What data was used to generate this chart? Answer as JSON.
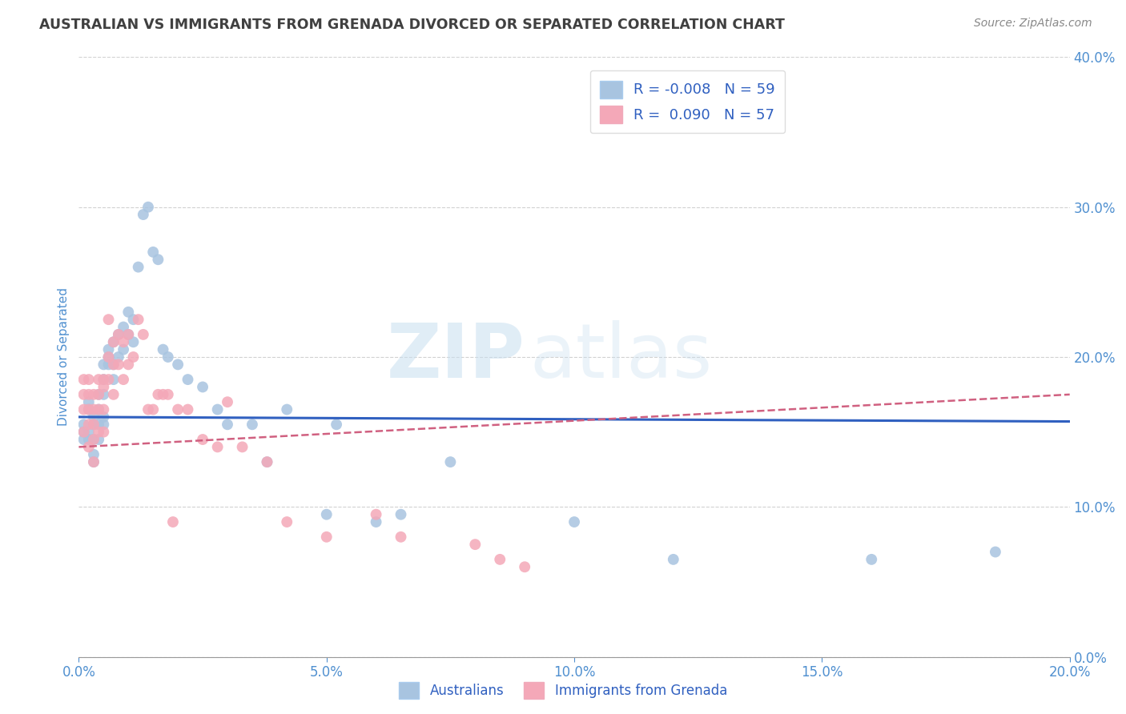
{
  "title": "AUSTRALIAN VS IMMIGRANTS FROM GRENADA DIVORCED OR SEPARATED CORRELATION CHART",
  "source": "Source: ZipAtlas.com",
  "ylabel": "Divorced or Separated",
  "legend_label1": "Australians",
  "legend_label2": "Immigrants from Grenada",
  "R1": "-0.008",
  "N1": "59",
  "R2": "0.090",
  "N2": "57",
  "xlim": [
    0.0,
    0.2
  ],
  "ylim": [
    0.0,
    0.4
  ],
  "xticks": [
    0.0,
    0.05,
    0.1,
    0.15,
    0.2
  ],
  "yticks": [
    0.0,
    0.1,
    0.2,
    0.3,
    0.4
  ],
  "color1": "#a8c4e0",
  "color2": "#f4a8b8",
  "line1_color": "#3060c0",
  "line2_color": "#d06080",
  "watermark_zip": "ZIP",
  "watermark_atlas": "atlas",
  "background_color": "#ffffff",
  "grid_color": "#cccccc",
  "title_color": "#404040",
  "ax_label_color": "#5090d0",
  "australians_x": [
    0.001,
    0.001,
    0.001,
    0.002,
    0.002,
    0.002,
    0.002,
    0.003,
    0.003,
    0.003,
    0.003,
    0.003,
    0.004,
    0.004,
    0.004,
    0.004,
    0.005,
    0.005,
    0.005,
    0.005,
    0.005,
    0.006,
    0.006,
    0.006,
    0.007,
    0.007,
    0.007,
    0.008,
    0.008,
    0.009,
    0.009,
    0.01,
    0.01,
    0.011,
    0.011,
    0.012,
    0.013,
    0.014,
    0.015,
    0.016,
    0.017,
    0.018,
    0.02,
    0.022,
    0.025,
    0.028,
    0.03,
    0.035,
    0.038,
    0.042,
    0.05,
    0.052,
    0.06,
    0.065,
    0.075,
    0.1,
    0.12,
    0.16,
    0.185
  ],
  "australians_y": [
    0.155,
    0.15,
    0.145,
    0.17,
    0.165,
    0.15,
    0.145,
    0.16,
    0.155,
    0.145,
    0.135,
    0.13,
    0.175,
    0.165,
    0.155,
    0.145,
    0.195,
    0.185,
    0.175,
    0.16,
    0.155,
    0.205,
    0.2,
    0.195,
    0.21,
    0.195,
    0.185,
    0.215,
    0.2,
    0.22,
    0.205,
    0.23,
    0.215,
    0.225,
    0.21,
    0.26,
    0.295,
    0.3,
    0.27,
    0.265,
    0.205,
    0.2,
    0.195,
    0.185,
    0.18,
    0.165,
    0.155,
    0.155,
    0.13,
    0.165,
    0.095,
    0.155,
    0.09,
    0.095,
    0.13,
    0.09,
    0.065,
    0.065,
    0.07
  ],
  "grenada_x": [
    0.001,
    0.001,
    0.001,
    0.001,
    0.002,
    0.002,
    0.002,
    0.002,
    0.002,
    0.003,
    0.003,
    0.003,
    0.003,
    0.003,
    0.004,
    0.004,
    0.004,
    0.004,
    0.005,
    0.005,
    0.005,
    0.005,
    0.006,
    0.006,
    0.006,
    0.007,
    0.007,
    0.007,
    0.008,
    0.008,
    0.009,
    0.009,
    0.01,
    0.01,
    0.011,
    0.012,
    0.013,
    0.014,
    0.015,
    0.016,
    0.017,
    0.018,
    0.019,
    0.02,
    0.022,
    0.025,
    0.028,
    0.03,
    0.033,
    0.038,
    0.042,
    0.05,
    0.06,
    0.065,
    0.08,
    0.085,
    0.09
  ],
  "grenada_y": [
    0.185,
    0.175,
    0.165,
    0.15,
    0.185,
    0.175,
    0.165,
    0.155,
    0.14,
    0.175,
    0.165,
    0.155,
    0.145,
    0.13,
    0.185,
    0.175,
    0.165,
    0.15,
    0.185,
    0.18,
    0.165,
    0.15,
    0.225,
    0.2,
    0.185,
    0.21,
    0.195,
    0.175,
    0.215,
    0.195,
    0.21,
    0.185,
    0.215,
    0.195,
    0.2,
    0.225,
    0.215,
    0.165,
    0.165,
    0.175,
    0.175,
    0.175,
    0.09,
    0.165,
    0.165,
    0.145,
    0.14,
    0.17,
    0.14,
    0.13,
    0.09,
    0.08,
    0.095,
    0.08,
    0.075,
    0.065,
    0.06
  ],
  "line1_x": [
    0.0,
    0.2
  ],
  "line1_y": [
    0.16,
    0.157
  ],
  "line2_x": [
    0.0,
    0.2
  ],
  "line2_y": [
    0.14,
    0.175
  ]
}
